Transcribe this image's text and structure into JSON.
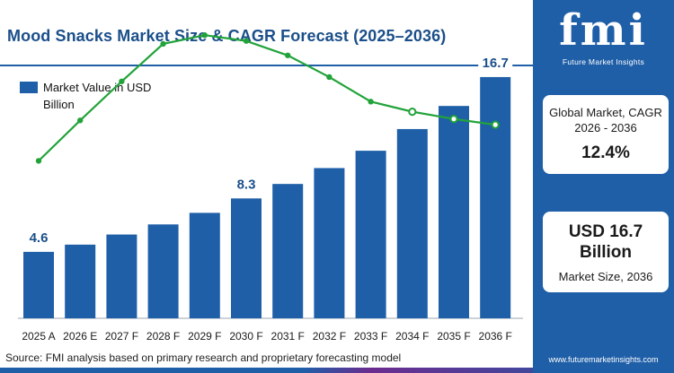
{
  "title": "Mood Snacks Market Size & CAGR Forecast (2025–2036)",
  "legend": {
    "label": "Market Value in USD Billion"
  },
  "source": "Source: FMI analysis based on primary research and proprietary forecasting model",
  "brand": {
    "logo_text": "fmi",
    "logo_subtitle": "Future Market Insights",
    "website": "www.futuremarketinsights.com"
  },
  "side_cards": {
    "cagr_label": "Global Market, CAGR 2026 - 2036",
    "cagr_value": "12.4%",
    "size_value": "USD 16.7 Billion",
    "size_label": "Market Size, 2036"
  },
  "colors": {
    "bar": "#1f5fa8",
    "line": "#22a33a",
    "panel": "#1f5fa8",
    "title": "#1b4f8a"
  },
  "chart_data": {
    "type": "bar",
    "categories": [
      "2025 A",
      "2026 E",
      "2027 F",
      "2028 F",
      "2029 F",
      "2030 F",
      "2031 F",
      "2032 F",
      "2033 F",
      "2034 F",
      "2035 F",
      "2036 F"
    ],
    "series": [
      {
        "name": "Market Value in USD Billion",
        "values": [
          4.6,
          5.1,
          5.8,
          6.5,
          7.3,
          8.3,
          9.3,
          10.4,
          11.6,
          13.1,
          14.7,
          16.7
        ]
      }
    ],
    "data_labels": [
      {
        "index": 0,
        "text": "4.6"
      },
      {
        "index": 5,
        "text": "8.3"
      },
      {
        "index": 11,
        "text": "16.7"
      }
    ],
    "growth_trend": {
      "type": "line",
      "values": [
        10.9,
        13.7,
        16.4,
        19.0,
        19.6,
        19.2,
        18.2,
        16.7,
        15.0,
        14.3,
        13.8,
        13.4
      ],
      "hollow_markers_from_index": 9
    },
    "ylim": [
      0,
      18
    ],
    "xlabel": "",
    "ylabel": "",
    "grid": false,
    "legend_position": "top-left"
  }
}
